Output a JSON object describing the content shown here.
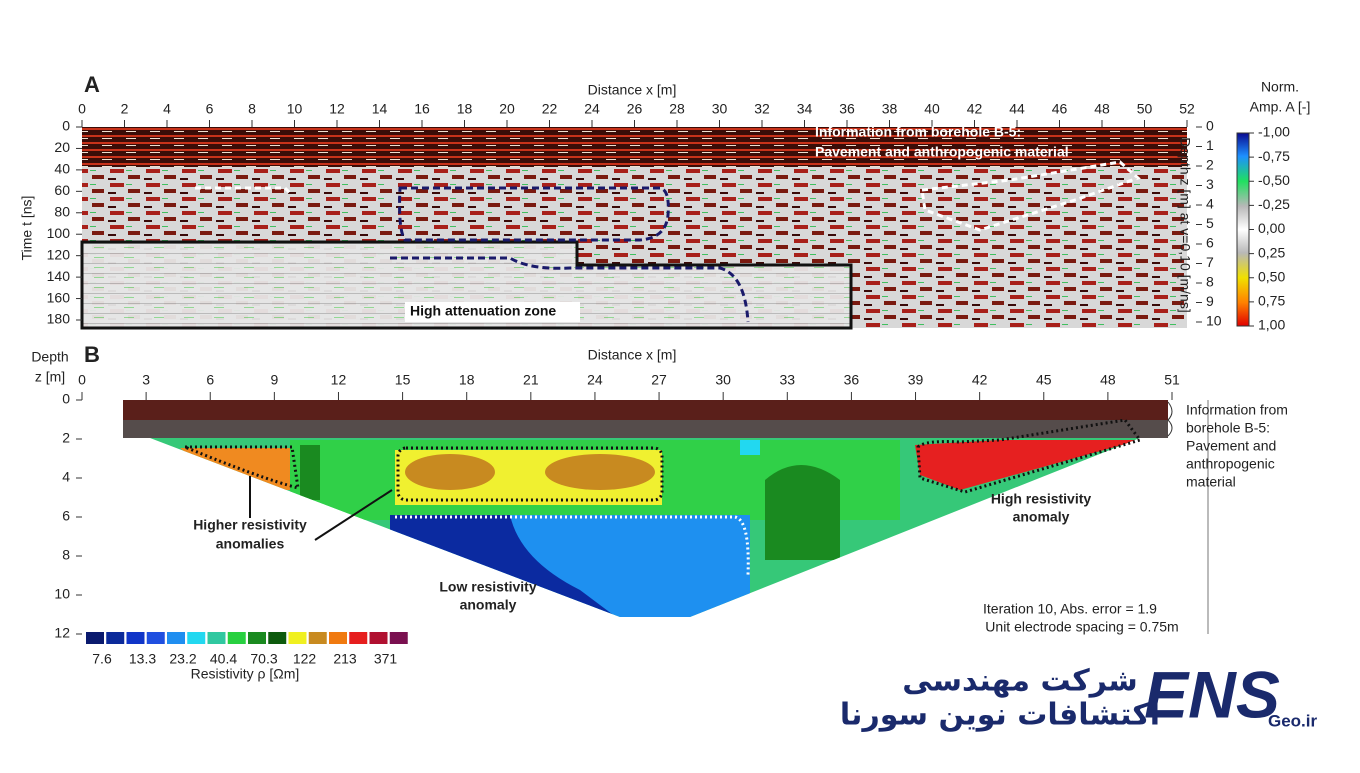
{
  "panel_a": {
    "label": "A",
    "x_title": "Distance  x [m]",
    "xticks": [
      0,
      2,
      4,
      6,
      8,
      10,
      12,
      14,
      16,
      18,
      20,
      22,
      24,
      26,
      28,
      30,
      32,
      34,
      36,
      38,
      40,
      42,
      44,
      46,
      48,
      50,
      52
    ],
    "y_title": "Time  t [ns]",
    "yticks": [
      0,
      20,
      40,
      60,
      80,
      100,
      120,
      140,
      160,
      180
    ],
    "y2_title": "Depth z [m] at v=0,10 [m/ns]",
    "y2ticks": [
      0,
      1,
      2,
      3,
      4,
      5,
      6,
      7,
      8,
      9,
      10
    ],
    "colorbar": {
      "title": [
        "Norm.",
        "Amp. A [-]"
      ],
      "ticks": [
        {
          "value": -1,
          "label": "-1,00"
        },
        {
          "value": -0.75,
          "label": "-0,75"
        },
        {
          "value": -0.5,
          "label": "-0,50"
        },
        {
          "value": -0.25,
          "label": "-0,25"
        },
        {
          "value": 0,
          "label": "0,00"
        },
        {
          "value": 0.25,
          "label": "0,25"
        },
        {
          "value": 0.5,
          "label": "0,50"
        },
        {
          "value": 0.75,
          "label": "0,75"
        },
        {
          "value": 1,
          "label": "1,00"
        }
      ]
    },
    "annotations": [
      "Information from borehole B-5:",
      "Pavement and anthropogenic material",
      "High attenuation zone"
    ]
  },
  "panel_b": {
    "label": "B",
    "x_title": "Distance  x [m]",
    "xticks": [
      0,
      3,
      6,
      9,
      12,
      15,
      18,
      21,
      24,
      27,
      30,
      33,
      36,
      39,
      42,
      45,
      48,
      51
    ],
    "y_title": [
      "Depth",
      "z [m]"
    ],
    "yticks": [
      0,
      2,
      4,
      6,
      8,
      10,
      12
    ],
    "colorbar": {
      "title": "Resistivity  ρ [Ωm]",
      "labels": [
        7.6,
        13.3,
        23.2,
        40.4,
        70.3,
        122,
        213,
        371
      ]
    },
    "annotations": [
      "Higher resistivity",
      "anomalies",
      "Low resistivity",
      "anomaly",
      "High resistivity",
      "anomaly",
      "Iteration 10, Abs. error = 1.9",
      "Unit electrode spacing = 0.75m"
    ],
    "borehole_note": [
      "Information from",
      "borehole B-5:",
      "Pavement and",
      "anthropogenic",
      "material"
    ]
  },
  "logo": {
    "line1": "شرکت مهندسی",
    "line2": "اکتشافات نوین سورنا",
    "brand": "ENS",
    "domain": "Geo.ir"
  }
}
